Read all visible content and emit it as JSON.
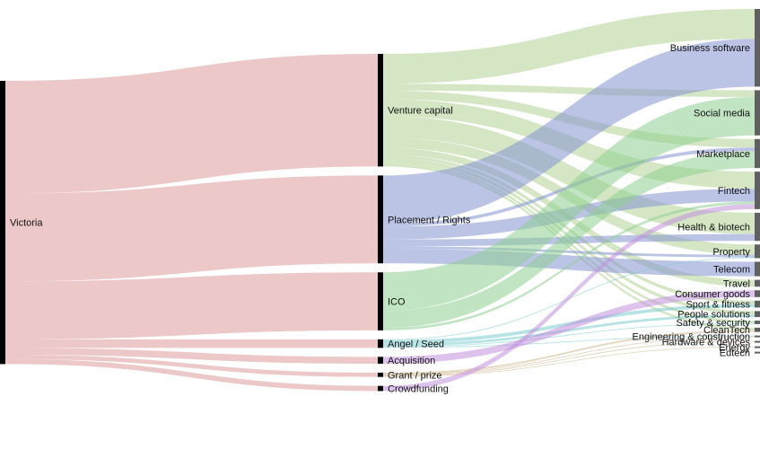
{
  "chart_data": {
    "type": "sankey",
    "title": "",
    "columns": [
      [
        {
          "id": "vic",
          "label": "Victoria"
        }
      ],
      [
        {
          "id": "vc",
          "label": "Venture capital"
        },
        {
          "id": "pr",
          "label": "Placement / Rights"
        },
        {
          "id": "ico",
          "label": "ICO"
        },
        {
          "id": "as",
          "label": "Angel / Seed"
        },
        {
          "id": "acq",
          "label": "Acquisition"
        },
        {
          "id": "gp",
          "label": "Grant / prize"
        },
        {
          "id": "cf",
          "label": "Crowdfunding"
        }
      ],
      [
        {
          "id": "bs",
          "label": "Business software"
        },
        {
          "id": "sm",
          "label": "Social media"
        },
        {
          "id": "mp",
          "label": "Marketplace"
        },
        {
          "id": "ft",
          "label": "Fintech"
        },
        {
          "id": "hb",
          "label": "Health & biotech"
        },
        {
          "id": "prop",
          "label": "Property"
        },
        {
          "id": "tel",
          "label": "Telecom"
        },
        {
          "id": "trv",
          "label": "Travel"
        },
        {
          "id": "cg",
          "label": "Consumer goods"
        },
        {
          "id": "sf",
          "label": "Sport & fitness"
        },
        {
          "id": "ps",
          "label": "People solutions"
        },
        {
          "id": "ss",
          "label": "Safety & security"
        },
        {
          "id": "ct",
          "label": "CleanTech"
        },
        {
          "id": "ec",
          "label": "Engineering & construction"
        },
        {
          "id": "hd",
          "label": "Hardware & devices"
        },
        {
          "id": "en",
          "label": "Energy"
        },
        {
          "id": "ed",
          "label": "Edtech"
        }
      ]
    ],
    "links": [
      {
        "source": "vic",
        "target": "vc",
        "value": 132
      },
      {
        "source": "vic",
        "target": "pr",
        "value": 103
      },
      {
        "source": "vic",
        "target": "ico",
        "value": 68
      },
      {
        "source": "vic",
        "target": "as",
        "value": 10
      },
      {
        "source": "vic",
        "target": "acq",
        "value": 8
      },
      {
        "source": "vic",
        "target": "gp",
        "value": 5
      },
      {
        "source": "vic",
        "target": "cf",
        "value": 6
      },
      {
        "source": "vc",
        "target": "bs",
        "value": 35
      },
      {
        "source": "vc",
        "target": "mp",
        "value": 10
      },
      {
        "source": "vc",
        "target": "ft",
        "value": 20
      },
      {
        "source": "vc",
        "target": "hb",
        "value": 25
      },
      {
        "source": "vc",
        "target": "prop",
        "value": 12
      },
      {
        "source": "vc",
        "target": "sm",
        "value": 8
      },
      {
        "source": "vc",
        "target": "trv",
        "value": 8
      },
      {
        "source": "vc",
        "target": "sf",
        "value": 4
      },
      {
        "source": "vc",
        "target": "ps",
        "value": 4
      },
      {
        "source": "vc",
        "target": "ss",
        "value": 3
      },
      {
        "source": "vc",
        "target": "ct",
        "value": 3
      },
      {
        "source": "pr",
        "target": "bs",
        "value": 56
      },
      {
        "source": "pr",
        "target": "ft",
        "value": 15
      },
      {
        "source": "pr",
        "target": "tel",
        "value": 17
      },
      {
        "source": "pr",
        "target": "hb",
        "value": 8
      },
      {
        "source": "pr",
        "target": "mp",
        "value": 4
      },
      {
        "source": "pr",
        "target": "prop",
        "value": 3
      },
      {
        "source": "ico",
        "target": "sm",
        "value": 45
      },
      {
        "source": "ico",
        "target": "mp",
        "value": 20
      },
      {
        "source": "ico",
        "target": "ft",
        "value": 3
      },
      {
        "source": "as",
        "target": "sf",
        "value": 4
      },
      {
        "source": "as",
        "target": "ps",
        "value": 3
      },
      {
        "source": "as",
        "target": "prop",
        "value": 1
      },
      {
        "source": "as",
        "target": "ec",
        "value": 1
      },
      {
        "source": "as",
        "target": "ss",
        "value": 1
      },
      {
        "source": "acq",
        "target": "cg",
        "value": 8
      },
      {
        "source": "gp",
        "target": "ct",
        "value": 2
      },
      {
        "source": "gp",
        "target": "ec",
        "value": 1
      },
      {
        "source": "gp",
        "target": "hd",
        "value": 1
      },
      {
        "source": "gp",
        "target": "en",
        "value": 1
      },
      {
        "source": "cf",
        "target": "ft",
        "value": 6
      }
    ],
    "colors": {
      "vic": "#dc9a9a",
      "vc": "#b2d294",
      "pr": "#8593d2",
      "ico": "#8ecf91",
      "as": "#7ccccd",
      "acq": "#c18fdc",
      "gp": "#cdb78c",
      "cf": "#c18fdc",
      "node_left": "#000000",
      "node_right": "#606060"
    }
  }
}
